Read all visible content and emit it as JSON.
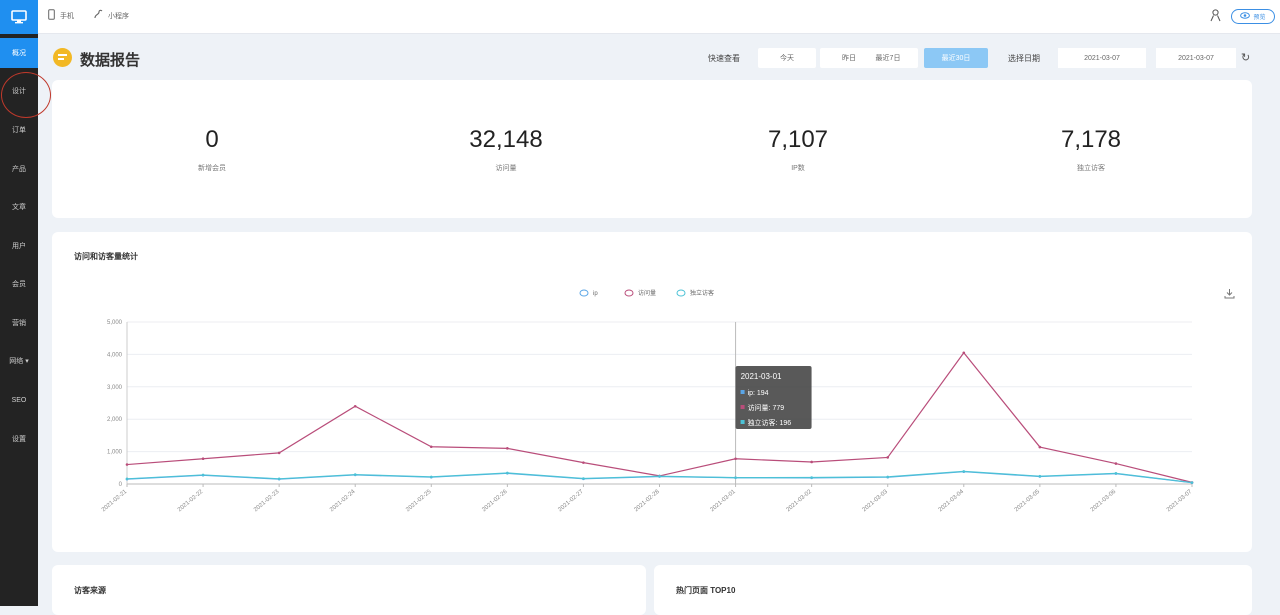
{
  "sidebar": {
    "items": [
      {
        "label": "概况",
        "active": true
      },
      {
        "label": "设计"
      },
      {
        "label": "订单"
      },
      {
        "label": "产品"
      },
      {
        "label": "文章"
      },
      {
        "label": "用户"
      },
      {
        "label": "会员"
      },
      {
        "label": "营销"
      },
      {
        "label": "网络 ▾"
      },
      {
        "label": "SEO"
      },
      {
        "label": "设置"
      }
    ]
  },
  "topbar": {
    "mobile_label": "手机",
    "mini_label": "小程序",
    "status_label": "预览"
  },
  "header": {
    "title": "数据报告",
    "quick_label": "快速查看",
    "quick_buttons": [
      "今天",
      "昨日",
      "最近7日",
      "最近30日"
    ],
    "date_label": "选择日期",
    "start_date": "2021-03-07",
    "end_date": "2021-03-07"
  },
  "stats": [
    {
      "value": "0",
      "label": "新增会员"
    },
    {
      "value": "32,148",
      "label": "访问量"
    },
    {
      "value": "7,107",
      "label": "IP数"
    },
    {
      "value": "7,178",
      "label": "独立访客"
    }
  ],
  "chart": {
    "title": "访问和访客量统计",
    "tooltip": {
      "date": "2021-03-01",
      "rows": [
        {
          "label": "ip",
          "value": "194",
          "color": "#5aa5e6"
        },
        {
          "label": "访问量",
          "value": "779",
          "color": "#b94d7a"
        },
        {
          "label": "独立访客",
          "value": "196",
          "color": "#4cc2d6"
        }
      ]
    }
  },
  "chart_data": {
    "type": "line",
    "title": "访问和访客量统计",
    "x": [
      "2021-02-21",
      "2021-02-22",
      "2021-02-23",
      "2021-02-24",
      "2021-02-25",
      "2021-02-26",
      "2021-02-27",
      "2021-02-28",
      "2021-03-01",
      "2021-03-02",
      "2021-03-03",
      "2021-03-04",
      "2021-03-05",
      "2021-03-06",
      "2021-03-07"
    ],
    "series": [
      {
        "name": "ip",
        "color": "#5aa5e6",
        "values": [
          150,
          270,
          150,
          280,
          210,
          330,
          160,
          230,
          194,
          190,
          210,
          380,
          230,
          320,
          40
        ]
      },
      {
        "name": "访问量",
        "color": "#b94d7a",
        "values": [
          600,
          780,
          960,
          2400,
          1150,
          1100,
          660,
          250,
          779,
          680,
          820,
          4050,
          1140,
          630,
          50
        ]
      },
      {
        "name": "独立访客",
        "color": "#4cc2d6",
        "values": [
          160,
          280,
          160,
          290,
          220,
          340,
          170,
          240,
          196,
          200,
          220,
          390,
          240,
          330,
          45
        ]
      }
    ],
    "yticks": [
      "0",
      "1,000",
      "2,000",
      "3,000",
      "4,000",
      "5,000"
    ],
    "ylim": [
      0,
      5000
    ],
    "legend_position": "top-center",
    "grid": true
  },
  "bottom": {
    "left_title": "访客来源",
    "right_title": "热门页面 TOP10"
  }
}
